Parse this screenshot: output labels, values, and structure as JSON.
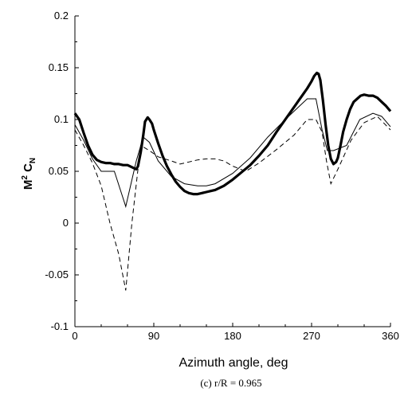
{
  "chart_data": {
    "type": "line",
    "xlabel": "Azimuth angle, deg",
    "ylabel_base": "M",
    "ylabel_sup": "2",
    "ylabel_mid": " C",
    "ylabel_sub": "N",
    "caption": "(c) r/R = 0.965",
    "xlim": [
      0,
      360
    ],
    "ylim": [
      -0.1,
      0.2
    ],
    "xticks": [
      "0",
      "90",
      "180",
      "270",
      "360"
    ],
    "yticks": [
      "-0.1",
      "-0.05",
      "0",
      "0.05",
      "0.1",
      "0.15",
      "0.2"
    ],
    "grid": false,
    "legend": "none",
    "series": [
      {
        "style": "thick",
        "x": [
          0,
          5,
          10,
          15,
          20,
          25,
          30,
          35,
          40,
          45,
          50,
          55,
          60,
          65,
          70,
          72,
          75,
          78,
          80,
          83,
          85,
          88,
          90,
          95,
          100,
          105,
          110,
          115,
          120,
          125,
          130,
          135,
          140,
          145,
          150,
          155,
          160,
          170,
          180,
          190,
          200,
          210,
          220,
          230,
          240,
          250,
          255,
          260,
          265,
          270,
          273,
          276,
          278,
          280,
          283,
          286,
          289,
          292,
          295,
          298,
          300,
          303,
          306,
          310,
          314,
          318,
          322,
          326,
          330,
          335,
          340,
          345,
          350,
          355,
          360
        ],
        "y": [
          0.106,
          0.1,
          0.087,
          0.075,
          0.066,
          0.061,
          0.059,
          0.058,
          0.058,
          0.057,
          0.057,
          0.056,
          0.056,
          0.054,
          0.052,
          0.055,
          0.068,
          0.085,
          0.098,
          0.102,
          0.1,
          0.096,
          0.09,
          0.077,
          0.065,
          0.055,
          0.047,
          0.04,
          0.035,
          0.031,
          0.029,
          0.028,
          0.028,
          0.029,
          0.03,
          0.031,
          0.032,
          0.036,
          0.042,
          0.049,
          0.056,
          0.065,
          0.075,
          0.088,
          0.1,
          0.112,
          0.118,
          0.124,
          0.13,
          0.137,
          0.142,
          0.145,
          0.144,
          0.138,
          0.118,
          0.095,
          0.075,
          0.062,
          0.057,
          0.059,
          0.063,
          0.075,
          0.088,
          0.1,
          0.11,
          0.117,
          0.12,
          0.123,
          0.124,
          0.123,
          0.123,
          0.121,
          0.117,
          0.113,
          0.108
        ]
      },
      {
        "style": "thin",
        "x": [
          0,
          10,
          20,
          30,
          45,
          58,
          70,
          78,
          85,
          95,
          110,
          125,
          140,
          150,
          160,
          180,
          200,
          220,
          240,
          255,
          265,
          275,
          282,
          288,
          295,
          310,
          325,
          340,
          350,
          360
        ],
        "y": [
          0.095,
          0.08,
          0.062,
          0.05,
          0.05,
          0.016,
          0.06,
          0.083,
          0.078,
          0.06,
          0.045,
          0.038,
          0.036,
          0.036,
          0.038,
          0.048,
          0.063,
          0.083,
          0.1,
          0.112,
          0.12,
          0.12,
          0.09,
          0.07,
          0.07,
          0.075,
          0.1,
          0.106,
          0.103,
          0.093
        ]
      },
      {
        "style": "dashed",
        "x": [
          0,
          10,
          20,
          30,
          40,
          50,
          58,
          65,
          75,
          85,
          95,
          110,
          120,
          130,
          140,
          150,
          160,
          170,
          180,
          195,
          210,
          230,
          250,
          265,
          275,
          282,
          287,
          292,
          300,
          315,
          330,
          345,
          360
        ],
        "y": [
          0.09,
          0.075,
          0.058,
          0.036,
          0.0,
          -0.03,
          -0.065,
          0.0,
          0.075,
          0.07,
          0.064,
          0.06,
          0.057,
          0.059,
          0.061,
          0.062,
          0.062,
          0.06,
          0.055,
          0.05,
          0.058,
          0.071,
          0.085,
          0.1,
          0.1,
          0.088,
          0.06,
          0.038,
          0.052,
          0.08,
          0.097,
          0.103,
          0.09
        ]
      }
    ]
  }
}
